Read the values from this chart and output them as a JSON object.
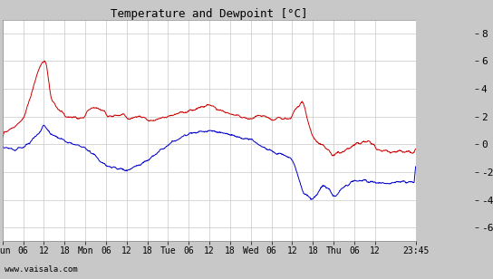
{
  "title": "Temperature and Dewpoint [°C]",
  "ylabel_right_ticks": [
    -6,
    -4,
    -2,
    0,
    2,
    4,
    6,
    8
  ],
  "ylim": [
    -7.0,
    9.0
  ],
  "watermark": "www.vaisala.com",
  "bg_color": "#ffffff",
  "panel_bg": "#c8c8c8",
  "grid_color": "#c8c8c8",
  "temp_color": "#cc0000",
  "dewp_color": "#0000cc",
  "line_width": 0.7,
  "x_tick_labels": [
    "Sun",
    "06",
    "12",
    "18",
    "Mon",
    "06",
    "12",
    "18",
    "Tue",
    "06",
    "12",
    "18",
    "Wed",
    "06",
    "12",
    "18",
    "Thu",
    "06",
    "12",
    "23:45"
  ],
  "x_tick_positions": [
    0,
    6,
    12,
    18,
    24,
    30,
    36,
    42,
    48,
    54,
    60,
    66,
    72,
    78,
    84,
    90,
    96,
    102,
    108,
    119.75
  ],
  "total_hours": 119.75,
  "figsize": [
    5.44,
    3.08
  ],
  "dpi": 100
}
